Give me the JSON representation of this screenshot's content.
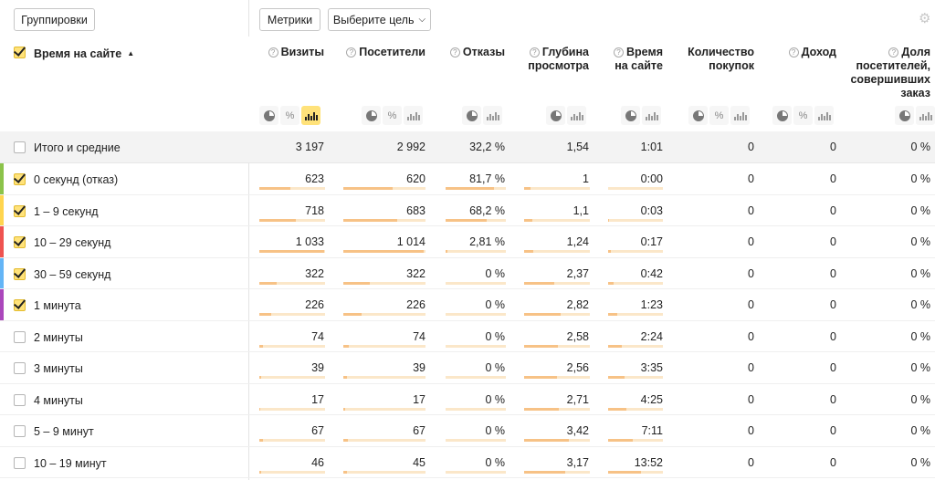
{
  "toolbar": {
    "groupings_label": "Группировки",
    "metrics_label": "Метрики",
    "goal_label": "Выберите цель"
  },
  "dimension": {
    "title": "Время на сайте",
    "sort_arrow": "▲"
  },
  "columns": [
    {
      "key": "visits",
      "title": "Визиты",
      "help": true
    },
    {
      "key": "visitors",
      "title": "Посетители",
      "help": true
    },
    {
      "key": "bounce",
      "title": "Отказы",
      "help": true
    },
    {
      "key": "depth",
      "title": "Глубина просмотра",
      "help": true
    },
    {
      "key": "time",
      "title": "Время на сайте",
      "help": true
    },
    {
      "key": "purchases",
      "title": "Количество покупок",
      "help": false
    },
    {
      "key": "revenue",
      "title": "Доход",
      "help": true
    },
    {
      "key": "share",
      "title": "Доля посетителей, совершивших заказ",
      "help": true
    }
  ],
  "total_row": {
    "label": "Итого и средние",
    "values": [
      "3 197",
      "2 992",
      "32,2 %",
      "1,54",
      "1:01",
      "0",
      "0",
      "0 %"
    ]
  },
  "rows": [
    {
      "label": "0 секунд (отказ)",
      "checked": true,
      "color": "#8bc34a",
      "values": [
        "623",
        "620",
        "81,7 %",
        "1",
        "0:00",
        "0",
        "0",
        "0 %"
      ],
      "fractions": [
        0.47,
        0.6,
        0.81,
        0.1,
        0.0
      ]
    },
    {
      "label": "1 – 9 секунд",
      "checked": true,
      "color": "#ffd54f",
      "values": [
        "718",
        "683",
        "68,2 %",
        "1,1",
        "0:03",
        "0",
        "0",
        "0 %"
      ],
      "fractions": [
        0.55,
        0.66,
        0.68,
        0.12,
        0.02
      ]
    },
    {
      "label": "10 – 29 секунд",
      "checked": true,
      "color": "#ef5350",
      "values": [
        "1 033",
        "1 014",
        "2,81 %",
        "1,24",
        "0:17",
        "0",
        "0",
        "0 %"
      ],
      "fractions": [
        0.98,
        0.98,
        0.03,
        0.14,
        0.05
      ]
    },
    {
      "label": "30 – 59 секунд",
      "checked": true,
      "color": "#64b5f6",
      "values": [
        "322",
        "322",
        "0 %",
        "2,37",
        "0:42",
        "0",
        "0",
        "0 %"
      ],
      "fractions": [
        0.26,
        0.32,
        0.0,
        0.46,
        0.1
      ]
    },
    {
      "label": "1 минута",
      "checked": true,
      "color": "#ab47bc",
      "values": [
        "226",
        "226",
        "0 %",
        "2,82",
        "1:23",
        "0",
        "0",
        "0 %"
      ],
      "fractions": [
        0.18,
        0.22,
        0.0,
        0.56,
        0.17
      ]
    },
    {
      "label": "2 минуты",
      "checked": false,
      "color": "",
      "values": [
        "74",
        "74",
        "0 %",
        "2,58",
        "2:24",
        "0",
        "0",
        "0 %"
      ],
      "fractions": [
        0.05,
        0.07,
        0.0,
        0.51,
        0.25
      ]
    },
    {
      "label": "3 минуты",
      "checked": false,
      "color": "",
      "values": [
        "39",
        "39",
        "0 %",
        "2,56",
        "3:35",
        "0",
        "0",
        "0 %"
      ],
      "fractions": [
        0.03,
        0.04,
        0.0,
        0.5,
        0.3
      ]
    },
    {
      "label": "4 минуты",
      "checked": false,
      "color": "",
      "values": [
        "17",
        "17",
        "0 %",
        "2,71",
        "4:25",
        "0",
        "0",
        "0 %"
      ],
      "fractions": [
        0.01,
        0.02,
        0.0,
        0.53,
        0.33
      ]
    },
    {
      "label": "5 – 9 минут",
      "checked": false,
      "color": "",
      "values": [
        "67",
        "67",
        "0 %",
        "3,42",
        "7:11",
        "0",
        "0",
        "0 %"
      ],
      "fractions": [
        0.05,
        0.06,
        0.0,
        0.68,
        0.45
      ]
    },
    {
      "label": "10 – 19 минут",
      "checked": false,
      "color": "",
      "values": [
        "46",
        "45",
        "0 %",
        "3,17",
        "13:52",
        "0",
        "0",
        "0 %"
      ],
      "fractions": [
        0.03,
        0.04,
        0.0,
        0.63,
        0.6
      ]
    }
  ],
  "icons": {
    "pie": "pie-chart-icon",
    "percent": "percent-icon",
    "bars": "bar-chart-icon",
    "gear": "gear-icon",
    "help": "help-icon",
    "chevron": "chevron-down-icon"
  }
}
